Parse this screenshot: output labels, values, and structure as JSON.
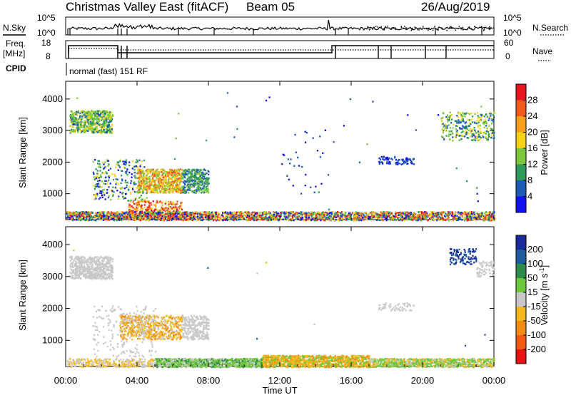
{
  "header": {
    "station": "Christmas Valley East (fitACF)",
    "beam": "Beam 05",
    "date": "26/Aug/2019"
  },
  "top_panels": {
    "noise_left_label": "N.Sky",
    "noise_right_label": "N.Search",
    "noise_ticks_left": [
      "10^5",
      "10^0"
    ],
    "noise_ticks_right": [
      "10^5",
      "10^0"
    ],
    "freq_label_line1": "Freq.",
    "freq_label_line2": "[MHz]",
    "freq_ticks": [
      "18",
      "8"
    ],
    "nave_label": "Nave",
    "nave_ticks": [
      "60",
      "0"
    ],
    "cpid_label": "CPID",
    "cpid_text": "normal (fast) 151 RF"
  },
  "power_colorbar": {
    "label": "Power [dB]",
    "ticks": [
      "28",
      "24",
      "20",
      "16",
      "12",
      "8",
      "4"
    ],
    "colors": [
      "#e8141e",
      "#f25a1e",
      "#f7a01e",
      "#f5d318",
      "#7dc83c",
      "#2f9a5a",
      "#1f5ab4",
      "#1212f0"
    ]
  },
  "velocity_colorbar": {
    "label": "Velocity [m s",
    "label_sup": "-1",
    "label_end": "]",
    "ticks": [
      "200",
      "100",
      "50",
      "15",
      "-15",
      "-50",
      "-100",
      "-200"
    ],
    "colors": [
      "#1b2a9c",
      "#1f5a9c",
      "#2e8b4a",
      "#72c83c",
      "#c8c8c8",
      "#f5b81e",
      "#f28c14",
      "#f25a14",
      "#e81414"
    ]
  },
  "chart_data": [
    {
      "type": "heatmap",
      "panel": "power",
      "ylabel": "Slant Range [km]",
      "xlabel": "",
      "ylim": [
        180,
        4560
      ],
      "xlim": [
        "00:00",
        "24:00"
      ],
      "ytick_labels": [
        "1000",
        "2000",
        "3000",
        "4000"
      ],
      "xtick_labels": [
        "00:00",
        "04:00",
        "08:00",
        "12:00",
        "16:00",
        "20:00",
        "00:00"
      ],
      "regions": [
        {
          "t": [
            0.2,
            2.6
          ],
          "r": [
            2950,
            3650
          ],
          "level": "mixed-green-blue"
        },
        {
          "t": [
            1.5,
            4.5
          ],
          "r": [
            800,
            2100
          ],
          "level": "mixed-green-blue"
        },
        {
          "t": [
            4.0,
            8.0
          ],
          "r": [
            1050,
            1800
          ],
          "level": "yellow-orange-red"
        },
        {
          "t": [
            3.5,
            6.5
          ],
          "r": [
            200,
            800
          ],
          "level": "red-orange"
        },
        {
          "t": [
            0.0,
            24.0
          ],
          "r": [
            180,
            450
          ],
          "level": "mixed-all"
        },
        {
          "t": [
            17.5,
            19.5
          ],
          "r": [
            1950,
            2200
          ],
          "level": "blue"
        },
        {
          "t": [
            21.0,
            24.0
          ],
          "r": [
            2700,
            3600
          ],
          "level": "green-blue"
        }
      ]
    },
    {
      "type": "heatmap",
      "panel": "velocity",
      "ylabel": "Slant Range [km]",
      "xlabel": "Time UT",
      "ylim": [
        180,
        4560
      ],
      "xlim": [
        "00:00",
        "24:00"
      ],
      "ytick_labels": [
        "1000",
        "2000",
        "3000",
        "4000"
      ],
      "xtick_labels": [
        "00:00",
        "04:00",
        "08:00",
        "12:00",
        "16:00",
        "20:00",
        "00:00"
      ],
      "regions": [
        {
          "t": [
            0.2,
            2.6
          ],
          "r": [
            2950,
            3650
          ],
          "level": "grey (-15..15)"
        },
        {
          "t": [
            3.0,
            8.0
          ],
          "r": [
            1050,
            1800
          ],
          "level": "orange (-50..-15)"
        },
        {
          "t": [
            3.0,
            5.0
          ],
          "r": [
            500,
            1100
          ],
          "level": "grey"
        },
        {
          "t": [
            5.0,
            11.0
          ],
          "r": [
            180,
            450
          ],
          "level": "green (15..50)"
        },
        {
          "t": [
            11.0,
            17.0
          ],
          "r": [
            180,
            500
          ],
          "level": "orange"
        },
        {
          "t": [
            17.0,
            24.0
          ],
          "r": [
            180,
            450
          ],
          "level": "green"
        },
        {
          "t": [
            21.5,
            23.0
          ],
          "r": [
            3400,
            3900
          ],
          "level": "blue (100..200)"
        }
      ]
    }
  ]
}
